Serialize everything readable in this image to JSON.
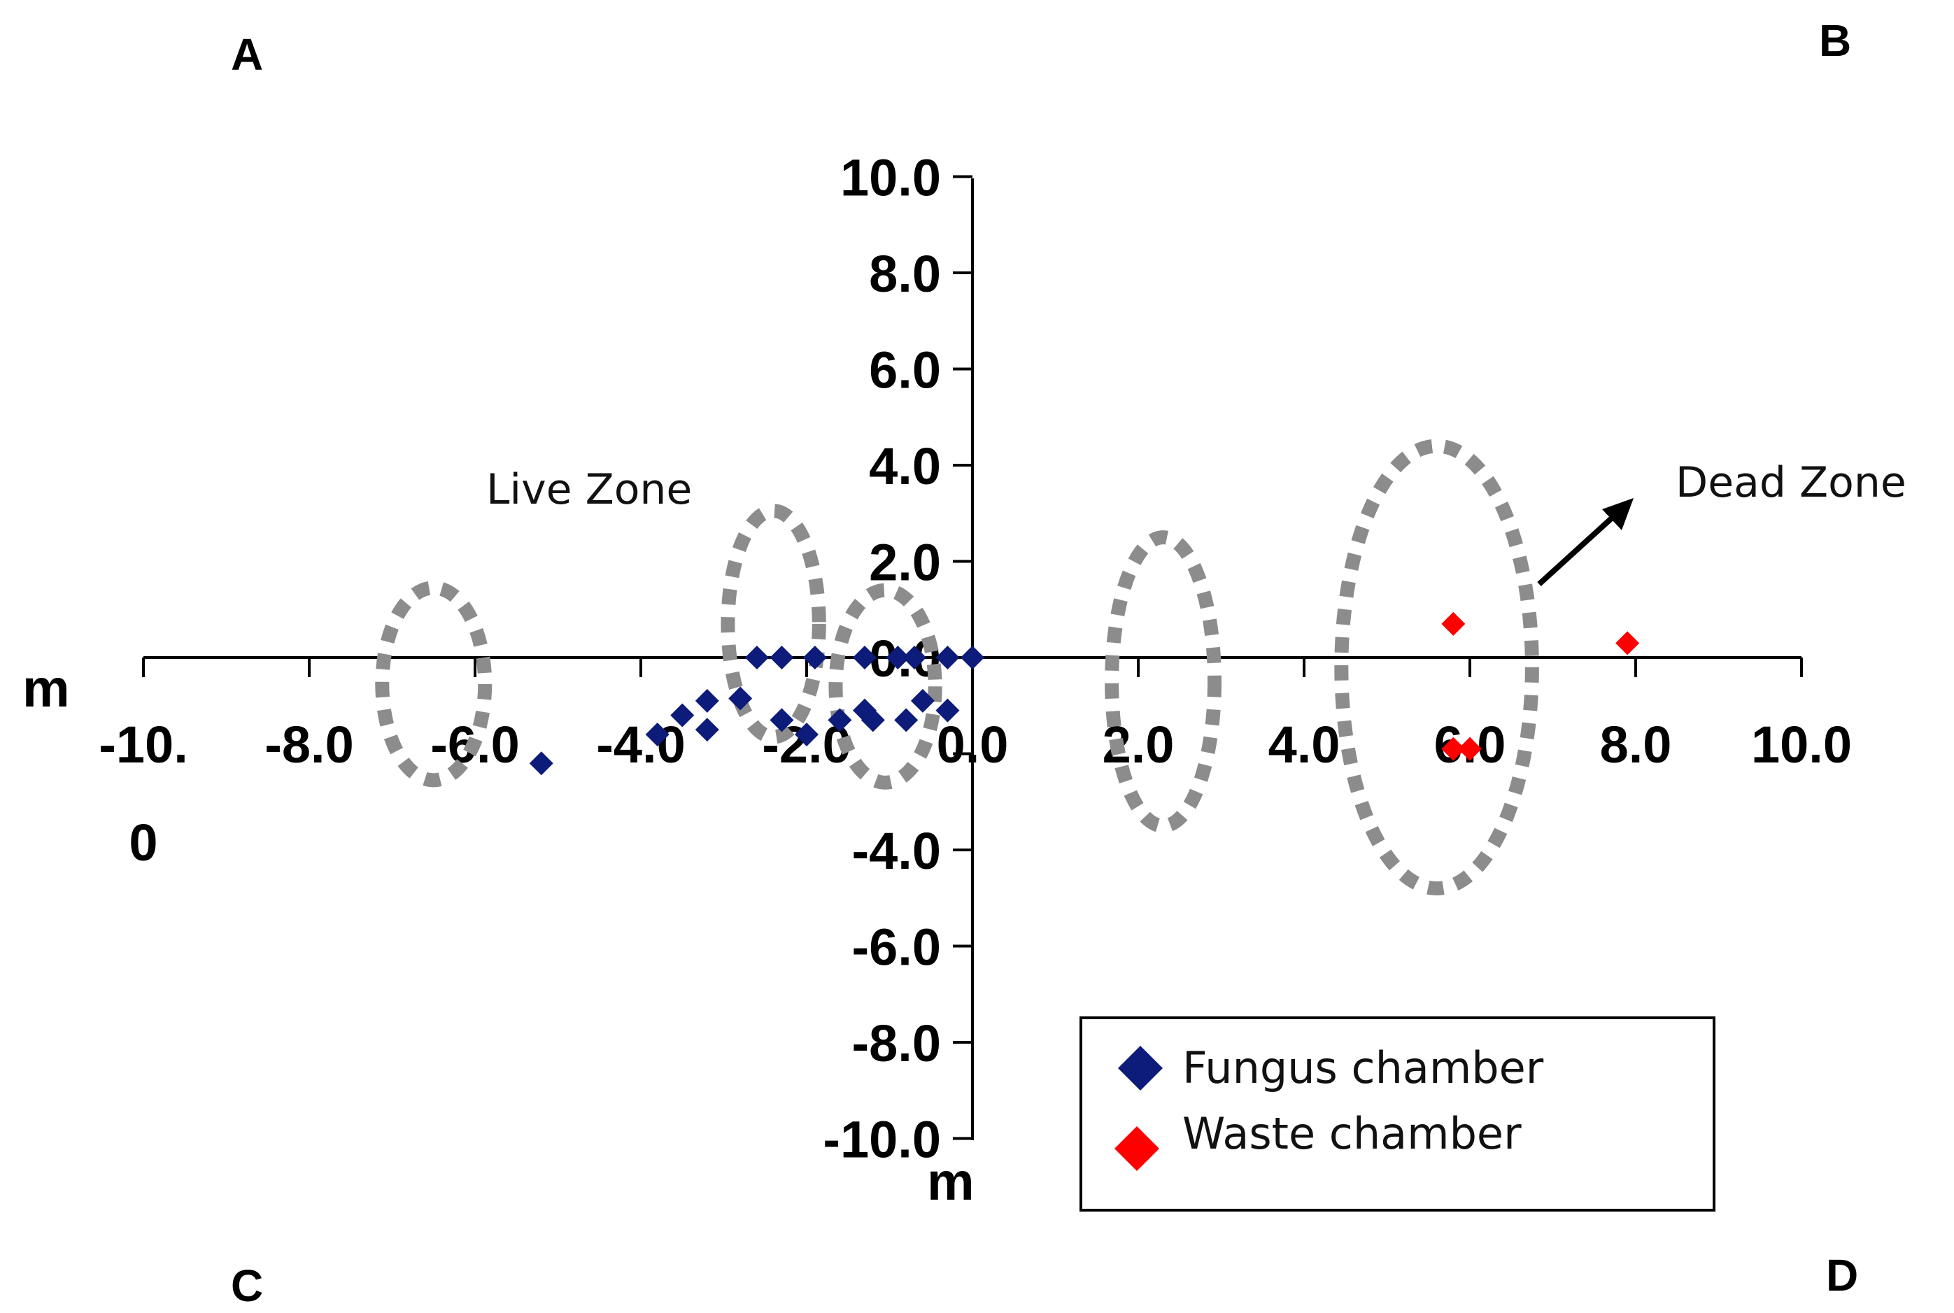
{
  "chart_data": {
    "type": "scatter",
    "title": "",
    "xlabel": "m",
    "ylabel": "m",
    "xlim": [
      -10,
      10
    ],
    "ylim": [
      -10,
      10
    ],
    "grid": false,
    "legend_position": "bottom-right",
    "x_ticks": [
      "-10.0",
      "-8.0",
      "-6.0",
      "-4.0",
      "-2.0",
      "0.0",
      "2.0",
      "4.0",
      "6.0",
      "8.0",
      "10.0"
    ],
    "y_ticks": [
      "10.0",
      "8.0",
      "6.0",
      "4.0",
      "2.0",
      "0.0",
      "-4.0",
      "-6.0",
      "-8.0",
      "-10.0"
    ],
    "quadrant_labels": [
      "A",
      "B",
      "C",
      "D"
    ],
    "series": [
      {
        "name": "Fungus chamber",
        "color": "#0d1b7a",
        "marker": "diamond",
        "points": [
          [
            -5.2,
            -2.2
          ],
          [
            -3.8,
            -1.6
          ],
          [
            -3.5,
            -1.2
          ],
          [
            -3.2,
            -0.9
          ],
          [
            -3.2,
            -1.5
          ],
          [
            -2.8,
            -0.85
          ],
          [
            -2.6,
            0.0
          ],
          [
            -2.3,
            0.0
          ],
          [
            -2.3,
            -1.3
          ],
          [
            -2.0,
            -1.6
          ],
          [
            -1.9,
            0.0
          ],
          [
            -1.6,
            -1.3
          ],
          [
            -1.3,
            0.0
          ],
          [
            -1.3,
            -1.1
          ],
          [
            -1.2,
            -1.3
          ],
          [
            -0.9,
            0.0
          ],
          [
            -0.8,
            -1.3
          ],
          [
            -0.7,
            0.0
          ],
          [
            -0.6,
            -0.9
          ],
          [
            -0.3,
            0.0
          ],
          [
            -0.3,
            -1.1
          ],
          [
            0.0,
            0.0
          ]
        ]
      },
      {
        "name": "Waste chamber",
        "color": "#ff0000",
        "marker": "diamond",
        "points": [
          [
            5.8,
            0.7
          ],
          [
            7.9,
            0.3
          ],
          [
            5.8,
            -1.9
          ],
          [
            6.0,
            -1.9
          ]
        ]
      }
    ],
    "annotations": [
      {
        "text": "Live Zone"
      },
      {
        "text": "Dead Zone"
      }
    ],
    "zone_ellipses": [
      {
        "cx": -6.5,
        "cy": -0.55,
        "rx": 0.62,
        "ry": 2.0
      },
      {
        "cx": -2.4,
        "cy": 0.7,
        "rx": 0.55,
        "ry": 2.35
      },
      {
        "cx": -1.05,
        "cy": -0.6,
        "rx": 0.6,
        "ry": 2.0
      },
      {
        "cx": 2.3,
        "cy": -0.5,
        "rx": 0.62,
        "ry": 3.0
      },
      {
        "cx": 5.6,
        "cy": -0.2,
        "rx": 1.15,
        "ry": 4.6
      }
    ]
  }
}
